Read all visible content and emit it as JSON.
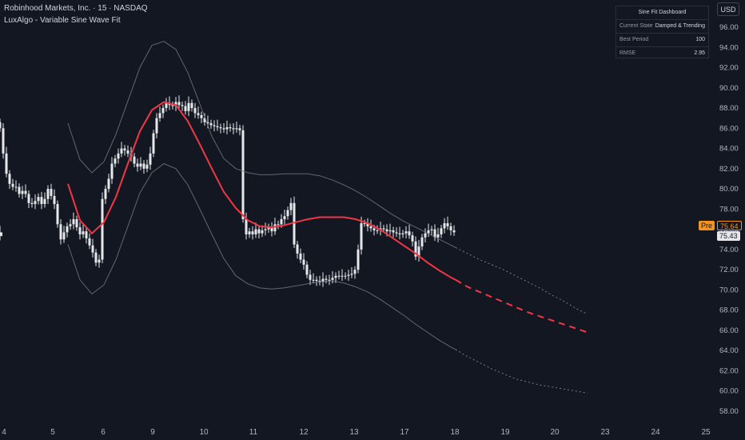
{
  "header": {
    "symbol": "Robinhood Markets, Inc. · 15 · NASDAQ",
    "indicator": "LuxAlgo - Variable Sine Wave Fit"
  },
  "currency_button": "USD",
  "dashboard": {
    "title": "Sine Fit Dashboard",
    "rows": [
      {
        "label": "Current State",
        "value": "Damped & Trending"
      },
      {
        "label": "Best Period",
        "value": "100"
      },
      {
        "label": "RMSE",
        "value": "2.95"
      }
    ]
  },
  "price_tags": {
    "pre_label": "Pre",
    "pre_value": "75.64",
    "last_value": "75.43"
  },
  "colors": {
    "background": "#131722",
    "candle": "#e6e7ea",
    "sine": "#f23645",
    "band": "#787b86",
    "pre_tag": "#f7931a",
    "grid_text": "#b2b5be"
  },
  "chart_data": {
    "type": "line",
    "ylim": [
      56.5,
      98.5
    ],
    "y_ticks": [
      "96.00",
      "94.00",
      "92.00",
      "90.00",
      "88.00",
      "86.00",
      "84.00",
      "82.00",
      "80.00",
      "78.00",
      "76.00",
      "74.00",
      "72.00",
      "70.00",
      "68.00",
      "66.00",
      "64.00",
      "62.00",
      "60.00",
      "58.00"
    ],
    "x_ticks": [
      "4",
      "5",
      "6",
      "9",
      "10",
      "11",
      "12",
      "13",
      "17",
      "18",
      "19",
      "20",
      "23",
      "24",
      "25"
    ],
    "price_x": [
      0,
      4,
      8,
      12,
      16,
      20,
      24,
      28,
      32,
      36,
      40,
      44,
      48,
      52,
      56,
      60,
      64,
      68,
      72,
      76,
      80,
      84,
      88,
      92,
      96,
      100,
      104,
      108,
      112,
      116,
      120,
      124,
      128,
      132,
      136,
      140,
      144,
      148,
      152,
      156,
      160,
      164,
      168,
      172,
      176,
      180,
      184,
      188,
      192,
      196,
      200,
      204,
      208,
      212,
      216,
      220,
      224,
      228,
      232,
      236,
      240,
      244,
      248,
      252,
      256,
      260,
      264,
      268,
      272,
      276,
      280,
      284,
      288,
      292,
      296,
      300,
      304,
      308,
      312,
      316,
      320,
      324,
      328,
      332,
      336,
      340,
      344,
      348,
      352,
      356,
      360,
      364,
      368,
      372,
      376,
      380,
      384,
      388,
      392,
      396,
      400,
      404,
      408,
      412,
      416,
      420,
      424,
      428,
      432,
      436,
      440,
      444,
      448,
      452,
      456,
      460,
      464,
      468,
      472,
      476,
      480,
      484,
      488,
      492,
      496,
      500,
      504,
      508,
      512,
      516,
      520,
      524,
      528,
      532,
      536,
      540,
      544,
      548,
      552,
      556,
      560,
      564,
      568
    ],
    "price": [
      86,
      83.5,
      81.5,
      80.5,
      80.2,
      80.2,
      79.5,
      79.8,
      79.5,
      78.6,
      78.5,
      78.8,
      79.2,
      78.5,
      79,
      80,
      79.3,
      78.5,
      76.5,
      75,
      75.7,
      76.3,
      76.5,
      77,
      76.2,
      75.5,
      75.8,
      75.1,
      74.4,
      73.7,
      72.7,
      73,
      79,
      80,
      81,
      82.5,
      83,
      83.5,
      84,
      83.8,
      83.5,
      83.2,
      82.5,
      82.2,
      82.5,
      82,
      82.4,
      83.5,
      85.5,
      87,
      87.5,
      88,
      88.5,
      88.3,
      88.2,
      88.6,
      88.3,
      88.2,
      87.7,
      88.5,
      88,
      87.5,
      87.3,
      87,
      86.6,
      86.5,
      86.3,
      86.2,
      86.1,
      86,
      85.9,
      86.1,
      86,
      85.9,
      86,
      85.8,
      77,
      75.5,
      75.8,
      75.5,
      76,
      75.6,
      75.9,
      76,
      76.2,
      75.8,
      76.5,
      76.5,
      77,
      77.3,
      77.9,
      78.6,
      74.5,
      73.6,
      73,
      72.5,
      71.5,
      71,
      71,
      70.9,
      70.8,
      71.1,
      71,
      71,
      71.2,
      71.4,
      71.4,
      71.4,
      71.4,
      71.5,
      71.6,
      72,
      74,
      76.6,
      76.6,
      76.3,
      76.1,
      75.9,
      75.9,
      76.1,
      76,
      75.8,
      75.9,
      75.7,
      75.6,
      75.5,
      75.6,
      75.8,
      75.4,
      74.8,
      73.3,
      74.3,
      75.2,
      75.6,
      75.9,
      76,
      75.2,
      75.5,
      76.1,
      76.6,
      76.3,
      75.9,
      75.7,
      75.4,
      75.4
    ],
    "series": [
      {
        "x": [
          85,
          100,
          115,
          130,
          145,
          160,
          175,
          190,
          205,
          220,
          235,
          250,
          265,
          280,
          295,
          310,
          325,
          340,
          355,
          370,
          385,
          400,
          415,
          430,
          445,
          460,
          475,
          490,
          505,
          520,
          535,
          550,
          565,
          570
        ],
        "values": [
          80.5,
          76.9,
          75.6,
          76.7,
          79.2,
          82.5,
          85.7,
          87.8,
          88.6,
          88.3,
          86.7,
          84.4,
          82,
          79.7,
          78.1,
          76.9,
          76.3,
          76.2,
          76.4,
          76.7,
          77,
          77.2,
          77.2,
          77.2,
          77.0,
          76.6,
          76.0,
          75.2,
          74.4,
          73.6,
          72.7,
          71.9,
          71.2,
          71
        ]
      },
      {
        "x": [
          570,
          585,
          600,
          615,
          630,
          645,
          660,
          675,
          690,
          705,
          720,
          735
        ],
        "values": [
          71,
          70.3,
          69.8,
          69.3,
          68.8,
          68.3,
          67.8,
          67.4,
          67.0,
          66.6,
          66.2,
          65.8
        ]
      },
      {
        "x": [
          85,
          100,
          115,
          130,
          145,
          160,
          175,
          190,
          205,
          220,
          235,
          250,
          265,
          280,
          295,
          310,
          325,
          340,
          355,
          370,
          385,
          400,
          415,
          430,
          445,
          460,
          475,
          490,
          505,
          520,
          535,
          550,
          565,
          570
        ],
        "values": [
          86.5,
          82.9,
          81.6,
          82.7,
          85.4,
          88.7,
          92,
          94.2,
          94.6,
          93.8,
          91.5,
          88.4,
          85.2,
          83,
          82,
          81.6,
          81.4,
          81.4,
          81.5,
          81.5,
          81.5,
          81.3,
          80.9,
          80.4,
          79.8,
          79.1,
          78.3,
          77.5,
          76.8,
          76.2,
          75.6,
          75,
          74.4,
          74.2
        ]
      },
      {
        "x": [
          570,
          585,
          600,
          615,
          630,
          645,
          660,
          675,
          690,
          705,
          720,
          735
        ],
        "values": [
          74.2,
          73.6,
          73,
          72.5,
          72,
          71.4,
          70.8,
          70.2,
          69.5,
          68.9,
          68.2,
          67.6
        ]
      },
      {
        "x": [
          85,
          100,
          115,
          130,
          145,
          160,
          175,
          190,
          205,
          220,
          235,
          250,
          265,
          280,
          295,
          310,
          325,
          340,
          355,
          370,
          385,
          400,
          415,
          430,
          445,
          460,
          475,
          490,
          505,
          520,
          535,
          550,
          565,
          570
        ],
        "values": [
          74.5,
          71,
          69.6,
          70.5,
          73,
          76.3,
          79.6,
          81.6,
          82.5,
          82.0,
          80.4,
          78,
          75.5,
          73.1,
          71.4,
          70.6,
          70.2,
          70.1,
          70.2,
          70.4,
          70.6,
          70.8,
          70.9,
          70.7,
          70.3,
          69.8,
          69.1,
          68.3,
          67.5,
          66.6,
          65.8,
          65,
          64.3,
          64.1
        ]
      },
      {
        "x": [
          570,
          585,
          600,
          615,
          630,
          645,
          660,
          675,
          690,
          705,
          720,
          735
        ],
        "values": [
          64.1,
          63.4,
          62.8,
          62.2,
          61.7,
          61.2,
          60.9,
          60.6,
          60.4,
          60.2,
          60.0,
          59.8
        ]
      }
    ]
  }
}
